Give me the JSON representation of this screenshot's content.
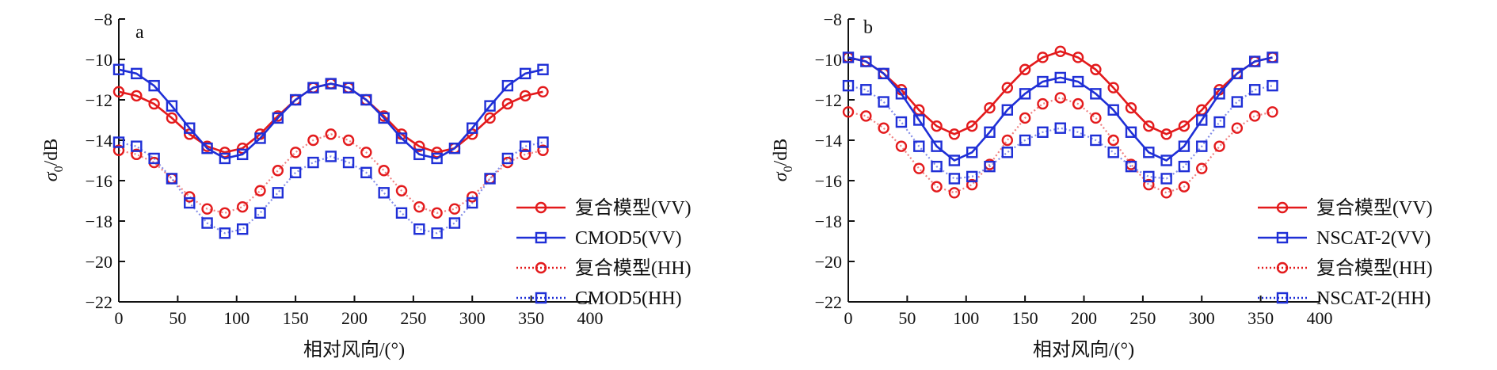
{
  "figure": {
    "background": "#ffffff"
  },
  "chart_data": [
    {
      "type": "line",
      "panel_label": "a",
      "xlabel": "相对风向/(°)",
      "ylabel_main": "σ",
      "ylabel_sub": "0",
      "ylabel_unit": "/dB",
      "xlim": [
        0,
        400
      ],
      "ylim": [
        -22,
        -8
      ],
      "xticks": [
        0,
        50,
        100,
        150,
        200,
        250,
        300,
        350,
        400
      ],
      "yticks": [
        -22,
        -20,
        -18,
        -16,
        -14,
        -12,
        -10,
        -8
      ],
      "ytick_labels": [
        "−22",
        "−20",
        "−18",
        "−16",
        "−14",
        "−12",
        "−10",
        "−8"
      ],
      "grid": false,
      "legend_position": "right",
      "x": [
        0,
        15,
        30,
        45,
        60,
        75,
        90,
        105,
        120,
        135,
        150,
        165,
        180,
        195,
        210,
        225,
        240,
        255,
        270,
        285,
        300,
        315,
        330,
        345,
        360
      ],
      "series": [
        {
          "name": "复合模型(VV)",
          "color": "#e31a1c",
          "marker": "circle",
          "line": "solid",
          "values": [
            -11.6,
            -11.8,
            -12.2,
            -12.9,
            -13.7,
            -14.3,
            -14.6,
            -14.4,
            -13.7,
            -12.8,
            -12.0,
            -11.4,
            -11.2,
            -11.4,
            -12.0,
            -12.8,
            -13.7,
            -14.3,
            -14.6,
            -14.4,
            -13.7,
            -12.9,
            -12.2,
            -11.8,
            -11.6
          ]
        },
        {
          "name": "CMOD5(VV)",
          "color": "#1f2fd6",
          "marker": "square",
          "line": "solid",
          "values": [
            -10.5,
            -10.7,
            -11.3,
            -12.3,
            -13.4,
            -14.4,
            -14.9,
            -14.7,
            -13.9,
            -12.9,
            -12.0,
            -11.4,
            -11.2,
            -11.4,
            -12.0,
            -12.9,
            -13.9,
            -14.7,
            -14.9,
            -14.4,
            -13.4,
            -12.3,
            -11.3,
            -10.7,
            -10.5
          ]
        },
        {
          "name": "复合模型(HH)",
          "color": "#e31a1c",
          "marker": "circle",
          "line": "dotted",
          "values": [
            -14.5,
            -14.7,
            -15.1,
            -15.9,
            -16.8,
            -17.4,
            -17.6,
            -17.3,
            -16.5,
            -15.5,
            -14.6,
            -14.0,
            -13.7,
            -14.0,
            -14.6,
            -15.5,
            -16.5,
            -17.3,
            -17.6,
            -17.4,
            -16.8,
            -15.9,
            -15.1,
            -14.7,
            -14.5
          ]
        },
        {
          "name": "CMOD5(HH)",
          "color": "#1f2fd6",
          "marker": "square",
          "line": "dotted",
          "values": [
            -14.1,
            -14.3,
            -14.9,
            -15.9,
            -17.1,
            -18.1,
            -18.6,
            -18.4,
            -17.6,
            -16.6,
            -15.6,
            -15.1,
            -14.8,
            -15.1,
            -15.6,
            -16.6,
            -17.6,
            -18.4,
            -18.6,
            -18.1,
            -17.1,
            -15.9,
            -14.9,
            -14.3,
            -14.1
          ]
        }
      ]
    },
    {
      "type": "line",
      "panel_label": "b",
      "xlabel": "相对风向/(°)",
      "ylabel_main": "σ",
      "ylabel_sub": "0",
      "ylabel_unit": "/dB",
      "xlim": [
        0,
        400
      ],
      "ylim": [
        -22,
        -8
      ],
      "xticks": [
        0,
        50,
        100,
        150,
        200,
        250,
        300,
        350,
        400
      ],
      "yticks": [
        -22,
        -20,
        -18,
        -16,
        -14,
        -12,
        -10,
        -8
      ],
      "ytick_labels": [
        "−22",
        "−20",
        "−18",
        "−16",
        "−14",
        "−12",
        "−10",
        "−8"
      ],
      "grid": false,
      "legend_position": "right",
      "x": [
        0,
        15,
        30,
        45,
        60,
        75,
        90,
        105,
        120,
        135,
        150,
        165,
        180,
        195,
        210,
        225,
        240,
        255,
        270,
        285,
        300,
        315,
        330,
        345,
        360
      ],
      "series": [
        {
          "name": "复合模型(VV)",
          "color": "#e31a1c",
          "marker": "circle",
          "line": "solid",
          "values": [
            -9.9,
            -10.1,
            -10.7,
            -11.5,
            -12.5,
            -13.3,
            -13.7,
            -13.3,
            -12.4,
            -11.4,
            -10.5,
            -9.9,
            -9.6,
            -9.9,
            -10.5,
            -11.4,
            -12.4,
            -13.3,
            -13.7,
            -13.3,
            -12.5,
            -11.5,
            -10.7,
            -10.1,
            -9.9
          ]
        },
        {
          "name": "NSCAT-2(VV)",
          "color": "#1f2fd6",
          "marker": "square",
          "line": "solid",
          "values": [
            -9.9,
            -10.1,
            -10.7,
            -11.7,
            -13.0,
            -14.3,
            -15.0,
            -14.6,
            -13.6,
            -12.5,
            -11.7,
            -11.1,
            -10.9,
            -11.1,
            -11.7,
            -12.5,
            -13.6,
            -14.6,
            -15.0,
            -14.3,
            -13.0,
            -11.7,
            -10.7,
            -10.1,
            -9.9
          ]
        },
        {
          "name": "复合模型(HH)",
          "color": "#e31a1c",
          "marker": "circle",
          "line": "dotted",
          "values": [
            -12.6,
            -12.8,
            -13.4,
            -14.3,
            -15.4,
            -16.3,
            -16.6,
            -16.2,
            -15.2,
            -14.0,
            -12.9,
            -12.2,
            -11.9,
            -12.2,
            -12.9,
            -14.0,
            -15.2,
            -16.2,
            -16.6,
            -16.3,
            -15.4,
            -14.3,
            -13.4,
            -12.8,
            -12.6
          ]
        },
        {
          "name": "NSCAT-2(HH)",
          "color": "#1f2fd6",
          "marker": "square",
          "line": "dotted",
          "values": [
            -11.3,
            -11.5,
            -12.1,
            -13.1,
            -14.3,
            -15.3,
            -15.9,
            -15.8,
            -15.3,
            -14.6,
            -14.0,
            -13.6,
            -13.4,
            -13.6,
            -14.0,
            -14.6,
            -15.3,
            -15.8,
            -15.9,
            -15.3,
            -14.3,
            -13.1,
            -12.1,
            -11.5,
            -11.3
          ]
        }
      ]
    }
  ]
}
